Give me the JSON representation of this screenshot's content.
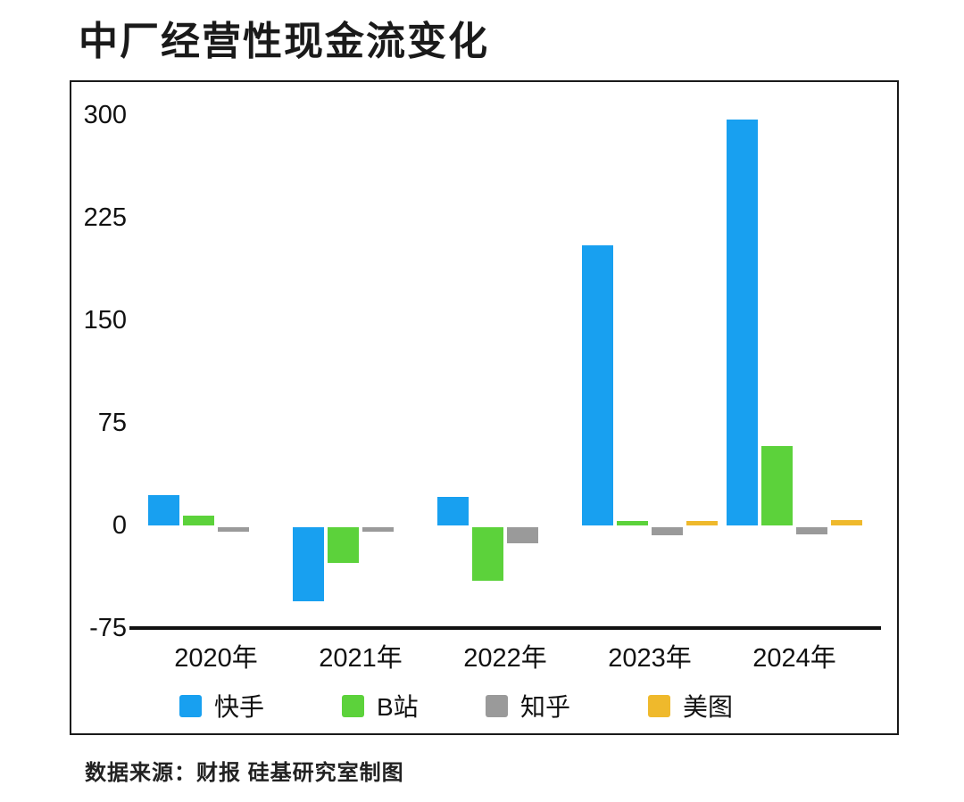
{
  "page": {
    "title": "中厂经营性现金流变化",
    "source_note": "数据来源：财报 硅基研究室制图"
  },
  "chart_data": {
    "type": "bar",
    "title": "中厂经营性现金流变化",
    "categories": [
      "2020年",
      "2021年",
      "2022年",
      "2023年",
      "2024年"
    ],
    "series": [
      {
        "name": "快手",
        "color": "#18A0F0",
        "values": [
          22,
          -54,
          21,
          205,
          297
        ]
      },
      {
        "name": "B站",
        "color": "#5CD23B",
        "values": [
          7,
          -26,
          -39,
          3,
          58
        ]
      },
      {
        "name": "知乎",
        "color": "#9A9A9A",
        "values": [
          -3,
          -3,
          -12,
          -6,
          -5
        ]
      },
      {
        "name": "美图",
        "color": "#EFB92C",
        "values": [
          0,
          0,
          0,
          3,
          4
        ]
      }
    ],
    "ylim": [
      -75,
      300
    ],
    "yticks": [
      300,
      225,
      150,
      75,
      0,
      -75
    ],
    "grid": "off",
    "legend_position": "bottom-inside",
    "baseline_axis": -75
  }
}
